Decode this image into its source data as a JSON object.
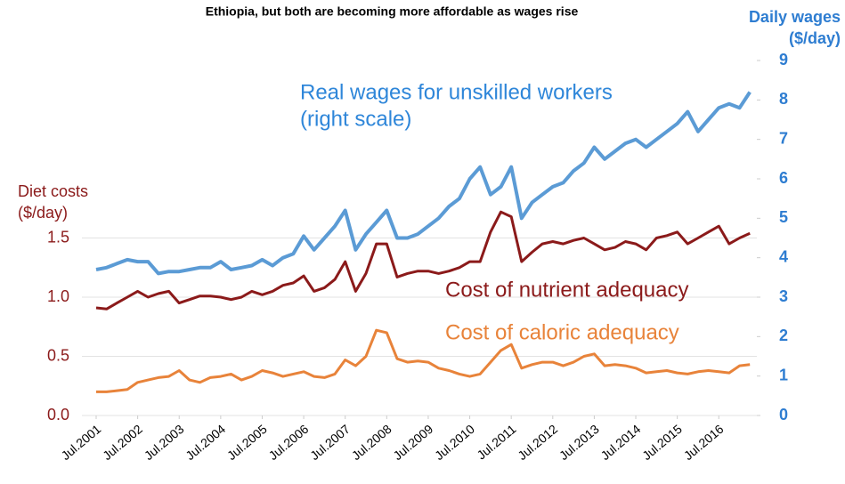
{
  "chart_data": {
    "type": "line",
    "title": "Ethiopia, but both are becoming more affordable as wages rise",
    "y_label": [
      "Diet costs",
      "($/day)"
    ],
    "y2_label": [
      "Daily wages",
      "($/day)"
    ],
    "annotations": [
      "(right scale)"
    ],
    "x": [
      "2001-07",
      "2001-10",
      "2002-01",
      "2002-04",
      "2002-07",
      "2002-10",
      "2003-01",
      "2003-04",
      "2003-07",
      "2003-10",
      "2004-01",
      "2004-04",
      "2004-07",
      "2004-10",
      "2005-01",
      "2005-04",
      "2005-07",
      "2005-10",
      "2006-01",
      "2006-04",
      "2006-07",
      "2006-10",
      "2007-01",
      "2007-04",
      "2007-07",
      "2007-10",
      "2008-01",
      "2008-04",
      "2008-07",
      "2008-10",
      "2009-01",
      "2009-04",
      "2009-07",
      "2009-10",
      "2010-01",
      "2010-04",
      "2010-07",
      "2010-10",
      "2011-01",
      "2011-04",
      "2011-07",
      "2011-10",
      "2012-01",
      "2012-04",
      "2012-07",
      "2012-10",
      "2013-01",
      "2013-04",
      "2013-07",
      "2013-10",
      "2014-01",
      "2014-04",
      "2014-07",
      "2014-10",
      "2015-01",
      "2015-04",
      "2015-07",
      "2015-10",
      "2016-01",
      "2016-04",
      "2016-07",
      "2016-10",
      "2017-01",
      "2017-04"
    ],
    "xlim": [
      "2001-07",
      "2017-06"
    ],
    "xticks": [
      {
        "value": "2001-07",
        "label": "Jul.2001"
      },
      {
        "value": "2002-07",
        "label": "Jul.2002"
      },
      {
        "value": "2003-07",
        "label": "Jul.2003"
      },
      {
        "value": "2004-07",
        "label": "Jul.2004"
      },
      {
        "value": "2005-07",
        "label": "Jul.2005"
      },
      {
        "value": "2006-07",
        "label": "Jul.2006"
      },
      {
        "value": "2007-07",
        "label": "Jul.2007"
      },
      {
        "value": "2008-07",
        "label": "Jul.2008"
      },
      {
        "value": "2009-07",
        "label": "Jul.2009"
      },
      {
        "value": "2010-07",
        "label": "Jul.2010"
      },
      {
        "value": "2011-07",
        "label": "Jul.2011"
      },
      {
        "value": "2012-07",
        "label": "Jul.2012"
      },
      {
        "value": "2013-07",
        "label": "Jul.2013"
      },
      {
        "value": "2014-07",
        "label": "Jul.2014"
      },
      {
        "value": "2015-07",
        "label": "Jul.2015"
      },
      {
        "value": "2016-07",
        "label": "Jul.2016"
      }
    ],
    "ylim": [
      0,
      3
    ],
    "yticks": [
      {
        "value": 0,
        "label": "0.0"
      },
      {
        "value": 0.5,
        "label": "0.5"
      },
      {
        "value": 1,
        "label": "1.0"
      },
      {
        "value": 1.5,
        "label": "1.5"
      }
    ],
    "y2lim": [
      0,
      9
    ],
    "y2ticks": [
      0,
      1,
      2,
      3,
      4,
      5,
      6,
      7,
      8,
      9
    ],
    "grid": true,
    "series": [
      {
        "name": "Real wages for unskilled workers",
        "color": "#5b9bd5",
        "axis": "y2",
        "values": [
          3.7,
          3.75,
          3.85,
          3.95,
          3.9,
          3.9,
          3.6,
          3.65,
          3.65,
          3.7,
          3.75,
          3.75,
          3.9,
          3.7,
          3.75,
          3.8,
          3.95,
          3.8,
          4.0,
          4.1,
          4.55,
          4.2,
          4.5,
          4.8,
          5.2,
          4.2,
          4.6,
          4.9,
          5.2,
          4.5,
          4.5,
          4.6,
          4.8,
          5.0,
          5.3,
          5.5,
          6.0,
          6.3,
          5.6,
          5.8,
          6.3,
          5.0,
          5.4,
          5.6,
          5.8,
          5.9,
          6.2,
          6.4,
          6.8,
          6.5,
          6.7,
          6.9,
          7.0,
          6.8,
          7.0,
          7.2,
          7.4,
          7.7,
          7.2,
          7.5,
          7.8,
          7.9,
          7.8,
          8.2
        ]
      },
      {
        "name": "Cost of nutrient adequacy",
        "color": "#8b1a1a",
        "values": [
          0.91,
          0.9,
          0.95,
          1.0,
          1.05,
          1.0,
          1.03,
          1.05,
          0.95,
          0.98,
          1.01,
          1.01,
          1.0,
          0.98,
          1.0,
          1.05,
          1.02,
          1.05,
          1.1,
          1.12,
          1.18,
          1.05,
          1.08,
          1.15,
          1.3,
          1.05,
          1.2,
          1.45,
          1.45,
          1.17,
          1.2,
          1.22,
          1.22,
          1.2,
          1.22,
          1.25,
          1.3,
          1.3,
          1.55,
          1.72,
          1.68,
          1.3,
          1.38,
          1.45,
          1.47,
          1.45,
          1.48,
          1.5,
          1.45,
          1.4,
          1.42,
          1.47,
          1.45,
          1.4,
          1.5,
          1.52,
          1.55,
          1.45,
          1.5,
          1.55,
          1.6,
          1.45,
          1.5,
          1.54
        ]
      },
      {
        "name": "Cost of caloric adequacy",
        "color": "#e8833a",
        "values": [
          0.2,
          0.2,
          0.21,
          0.22,
          0.28,
          0.3,
          0.32,
          0.33,
          0.38,
          0.3,
          0.28,
          0.32,
          0.33,
          0.35,
          0.3,
          0.33,
          0.38,
          0.36,
          0.33,
          0.35,
          0.37,
          0.33,
          0.32,
          0.35,
          0.47,
          0.42,
          0.5,
          0.72,
          0.7,
          0.48,
          0.45,
          0.46,
          0.45,
          0.4,
          0.38,
          0.35,
          0.33,
          0.35,
          0.45,
          0.55,
          0.6,
          0.4,
          0.43,
          0.45,
          0.45,
          0.42,
          0.45,
          0.5,
          0.52,
          0.42,
          0.43,
          0.42,
          0.4,
          0.36,
          0.37,
          0.38,
          0.36,
          0.35,
          0.37,
          0.38,
          0.37,
          0.36,
          0.42,
          0.43
        ]
      }
    ]
  }
}
